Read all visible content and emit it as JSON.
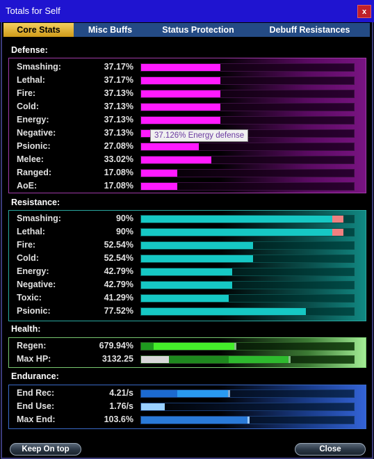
{
  "window": {
    "title": "Totals for Self",
    "close_glyph": "x"
  },
  "tabs": [
    {
      "label": "Core Stats",
      "active": true
    },
    {
      "label": "Misc Buffs",
      "active": false
    },
    {
      "label": "Status Protection",
      "active": false
    },
    {
      "label": "Debuff Resistances",
      "active": false
    }
  ],
  "sections": {
    "defense": {
      "title": "Defense:",
      "color": "#ff1aff",
      "rows": [
        {
          "label": "Smashing:",
          "value": "37.17%",
          "level": 0.3717
        },
        {
          "label": "Lethal:",
          "value": "37.17%",
          "level": 0.3717
        },
        {
          "label": "Fire:",
          "value": "37.13%",
          "level": 0.3713
        },
        {
          "label": "Cold:",
          "value": "37.13%",
          "level": 0.3713
        },
        {
          "label": "Energy:",
          "value": "37.13%",
          "level": 0.3713
        },
        {
          "label": "Negative:",
          "value": "37.13%",
          "level": 0.3713
        },
        {
          "label": "Psionic:",
          "value": "27.08%",
          "level": 0.2708
        },
        {
          "label": "Melee:",
          "value": "33.02%",
          "level": 0.3302
        },
        {
          "label": "Ranged:",
          "value": "17.08%",
          "level": 0.1708
        },
        {
          "label": "AoE:",
          "value": "17.08%",
          "level": 0.1708
        }
      ]
    },
    "resistance": {
      "title": "Resistance:",
      "color": "#16c8c4",
      "rows": [
        {
          "label": "Smashing:",
          "value": "90%",
          "level": 0.9,
          "capped": true
        },
        {
          "label": "Lethal:",
          "value": "90%",
          "level": 0.9,
          "capped": true
        },
        {
          "label": "Fire:",
          "value": "52.54%",
          "level": 0.5254
        },
        {
          "label": "Cold:",
          "value": "52.54%",
          "level": 0.5254
        },
        {
          "label": "Energy:",
          "value": "42.79%",
          "level": 0.4279
        },
        {
          "label": "Negative:",
          "value": "42.79%",
          "level": 0.4279
        },
        {
          "label": "Toxic:",
          "value": "41.29%",
          "level": 0.4129
        },
        {
          "label": "Psionic:",
          "value": "77.52%",
          "level": 0.7752
        }
      ]
    },
    "health": {
      "title": "Health:",
      "rows": [
        {
          "label": "Regen:",
          "value": "679.94%",
          "segments": [
            {
              "level": 0.06,
              "color": "#1e9a1e"
            },
            {
              "level": 0.38,
              "color": "#44ee2a"
            },
            {
              "level": 0.01,
              "color": "#88bb88"
            }
          ]
        },
        {
          "label": "Max HP:",
          "value": "3132.25",
          "segments": [
            {
              "level": 0.13,
              "color": "#d8d8d8"
            },
            {
              "level": 0.28,
              "color": "#1e8a1e"
            },
            {
              "level": 0.28,
              "color": "#2ebb2e"
            },
            {
              "level": 0.01,
              "color": "#88bb88"
            }
          ]
        }
      ]
    },
    "endurance": {
      "title": "Endurance:",
      "rows": [
        {
          "label": "End Rec:",
          "value": "4.21/s",
          "segments": [
            {
              "level": 0.17,
              "color": "#1c6ad0"
            },
            {
              "level": 0.24,
              "color": "#2a9af0"
            },
            {
              "level": 0.01,
              "color": "#88aacc"
            }
          ]
        },
        {
          "label": "End Use:",
          "value": "1.76/s",
          "segments": [
            {
              "level": 0.11,
              "color": "#9ad0ff"
            }
          ]
        },
        {
          "label": "Max End:",
          "value": "103.6%",
          "segments": [
            {
              "level": 0.5,
              "color": "#2a7ad8"
            },
            {
              "level": 0.01,
              "color": "#9ac8ff"
            }
          ]
        }
      ]
    }
  },
  "tooltip": "37.126% Energy defense",
  "buttons": {
    "keep_on_top": "Keep On top",
    "close": "Close"
  }
}
